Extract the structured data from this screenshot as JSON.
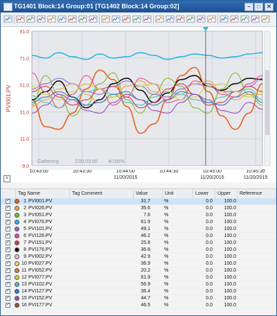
{
  "window": {
    "title": "TG1401 Block:14 Group:01 [TG1402 Block:14 Group:02]"
  },
  "titlebar_buttons": {
    "minimize": "–",
    "restore": "□",
    "close": "✕"
  },
  "toolbar": {
    "icons": [
      "print-icon",
      "trend-icon",
      "trend-icon",
      "trend-icon",
      "trend-icon",
      "trend-icon",
      "trend-icon",
      "trend-icon",
      "trend-icon",
      "cursor-icon",
      "trend-icon",
      "trend-icon",
      "trend-icon",
      "trend-icon",
      "settings-icon",
      "trend-icon",
      "trend-icon",
      "zoom-icon",
      "trend-icon",
      "trend-icon",
      "tag-icon",
      "tag-icon",
      "tag-icon",
      "trend-icon",
      "arrow-icon"
    ]
  },
  "chart_data": {
    "type": "line",
    "ylabel": "PVI001.PV",
    "y_ticks": [
      "91.0",
      "71.0",
      "51.0",
      "31.0",
      "11.0",
      "-9.0"
    ],
    "ylim": [
      -9.0,
      91.0
    ],
    "x_ticks": [
      "10:43:00",
      "10:43:30",
      "10:44:00\n11/20/2015",
      "10:44:30",
      "10:45:00\n11/20/2015",
      "10:45:30\n11/20/2015"
    ],
    "status": {
      "gathering": "Gathering",
      "elapsed": "00:03:00",
      "zoom": "100%"
    },
    "grid": true,
    "series": [
      {
        "color": "#2bb7e4",
        "values": [
          73,
          71,
          75,
          72,
          70,
          74,
          71,
          72,
          75,
          73,
          70,
          72,
          74,
          73,
          71,
          72,
          74,
          75
        ]
      },
      {
        "color": "#e5621f",
        "values": [
          40,
          20,
          18,
          30,
          48,
          62,
          55,
          35,
          15,
          22,
          40,
          58,
          64,
          46,
          28,
          18,
          30,
          52
        ]
      },
      {
        "color": "#111111",
        "values": [
          40,
          46,
          54,
          42,
          34,
          40,
          52,
          56,
          47,
          38,
          45,
          55,
          58,
          50,
          47,
          52,
          56,
          55
        ]
      },
      {
        "color": "#7cba2d",
        "values": [
          36,
          58,
          44,
          28,
          36,
          52,
          60,
          40,
          30,
          44,
          56,
          50,
          34,
          30,
          48,
          60,
          44,
          36
        ]
      },
      {
        "color": "#e94b8f",
        "values": [
          60,
          46,
          34,
          44,
          58,
          48,
          36,
          42,
          56,
          52,
          38,
          40,
          54,
          52,
          44,
          42,
          52,
          58
        ]
      },
      {
        "color": "#8f6bd2",
        "values": [
          48,
          52,
          56,
          52,
          46,
          44,
          50,
          54,
          50,
          44,
          42,
          48,
          52,
          50,
          46,
          46,
          50,
          56
        ]
      },
      {
        "color": "#f2a23a",
        "values": [
          35,
          40,
          48,
          52,
          44,
          38,
          42,
          50,
          54,
          46,
          40,
          44,
          52,
          54,
          46,
          40,
          44,
          44
        ]
      },
      {
        "color": "#4cc0c5",
        "values": [
          43,
          38,
          34,
          40,
          46,
          48,
          44,
          38,
          36,
          42,
          46,
          44,
          40,
          38,
          42,
          46,
          48,
          40
        ]
      },
      {
        "color": "#d6384a",
        "values": [
          46,
          50,
          42,
          36,
          40,
          48,
          50,
          42,
          34,
          38,
          48,
          52,
          44,
          36,
          38,
          46,
          50,
          46
        ]
      },
      {
        "color": "#3a79c8",
        "values": [
          38,
          42,
          46,
          42,
          36,
          38,
          44,
          46,
          40,
          36,
          40,
          46,
          44,
          38,
          36,
          42,
          46,
          38
        ]
      },
      {
        "color": "#c9d63a",
        "values": [
          50,
          44,
          40,
          46,
          52,
          48,
          42,
          44,
          50,
          52,
          46,
          40,
          42,
          50,
          52,
          46,
          42,
          47
        ]
      },
      {
        "color": "#9c4fb6",
        "values": [
          30,
          36,
          44,
          40,
          32,
          30,
          38,
          44,
          40,
          32,
          30,
          38,
          44,
          40,
          32,
          30,
          38,
          33
        ]
      }
    ]
  },
  "list": {
    "columns": [
      "",
      "Tag Name",
      "Tag Comment",
      "Value",
      "Unit",
      "Lower",
      "Upper",
      "Reference"
    ],
    "rows": [
      {
        "num": "1",
        "name": "PVI001.PV",
        "value": "31.7",
        "unit": "%",
        "lower": "0.0",
        "upper": "100.0",
        "color": "#e5621f"
      },
      {
        "num": "2",
        "name": "PVI026.PV",
        "value": "35.6",
        "unit": "%",
        "lower": "0.0",
        "upper": "100.0",
        "color": "#f2a23a"
      },
      {
        "num": "3",
        "name": "PVI051.PV",
        "value": "7.6",
        "unit": "%",
        "lower": "0.0",
        "upper": "100.0",
        "color": "#7cba2d"
      },
      {
        "num": "4",
        "name": "PVI076.PV",
        "value": "61.9",
        "unit": "%",
        "lower": "0.0",
        "upper": "100.0",
        "color": "#2bb7e4"
      },
      {
        "num": "5",
        "name": "PVI101.PV",
        "value": "49.1",
        "unit": "%",
        "lower": "0.0",
        "upper": "100.0",
        "color": "#8f6bd2"
      },
      {
        "num": "6",
        "name": "PVI126.PV",
        "value": "46.2",
        "unit": "%",
        "lower": "0.0",
        "upper": "100.0",
        "color": "#e94b8f"
      },
      {
        "num": "7",
        "name": "PVI151.PV",
        "value": "25.8",
        "unit": "%",
        "lower": "0.0",
        "upper": "100.0",
        "color": "#d6384a"
      },
      {
        "num": "8",
        "name": "PVI176.PV",
        "value": "36.8",
        "unit": "%",
        "lower": "0.0",
        "upper": "100.0",
        "color": "#111111"
      },
      {
        "num": "9",
        "name": "PVI002.PV",
        "value": "42.9",
        "unit": "%",
        "lower": "0.0",
        "upper": "100.0",
        "color": "#f4b7d8"
      },
      {
        "num": "10",
        "name": "PVI027.PV",
        "value": "36.9",
        "unit": "%",
        "lower": "0.0",
        "upper": "100.0",
        "color": "#f5d36b"
      },
      {
        "num": "11",
        "name": "PVI052.PV",
        "value": "20.2",
        "unit": "%",
        "lower": "0.0",
        "upper": "100.0",
        "color": "#e07a3a"
      },
      {
        "num": "12",
        "name": "PVI077.PV",
        "value": "61.9",
        "unit": "%",
        "lower": "0.0",
        "upper": "100.0",
        "color": "#c9d63a"
      },
      {
        "num": "13",
        "name": "PVI102.PV",
        "value": "56.9",
        "unit": "%",
        "lower": "0.0",
        "upper": "100.0",
        "color": "#4cc0c5"
      },
      {
        "num": "14",
        "name": "PVI127.PV",
        "value": "36.4",
        "unit": "%",
        "lower": "0.0",
        "upper": "100.0",
        "color": "#3a79c8"
      },
      {
        "num": "15",
        "name": "PVI152.PV",
        "value": "44.7",
        "unit": "%",
        "lower": "0.0",
        "upper": "100.0",
        "color": "#9c4fb6"
      },
      {
        "num": "16",
        "name": "PVI177.PV",
        "value": "46.5",
        "unit": "%",
        "lower": "0.0",
        "upper": "100.0",
        "color": "#8a5a3c"
      }
    ]
  }
}
